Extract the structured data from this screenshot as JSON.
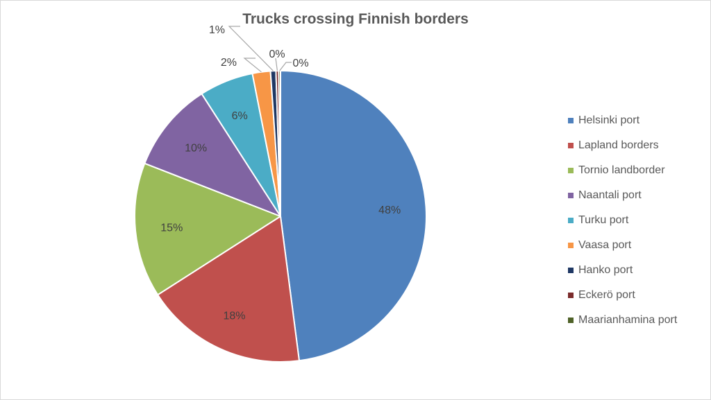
{
  "chart_data": {
    "type": "pie",
    "title": "Trucks crossing Finnish borders",
    "slices": [
      {
        "label": "Helsinki port",
        "value": 48,
        "display": "48%",
        "color": "#4F81BD"
      },
      {
        "label": "Lapland borders",
        "value": 18,
        "display": "18%",
        "color": "#C0504D"
      },
      {
        "label": "Tornio landborder",
        "value": 15,
        "display": "15%",
        "color": "#9BBB59"
      },
      {
        "label": "Naantali port",
        "value": 10,
        "display": "10%",
        "color": "#8064A2"
      },
      {
        "label": "Turku port",
        "value": 6,
        "display": "6%",
        "color": "#4BACC6"
      },
      {
        "label": "Vaasa port",
        "value": 2,
        "display": "2%",
        "color": "#F79646"
      },
      {
        "label": "Hanko port",
        "value": 0.6,
        "display": "1%",
        "color": "#1F3864"
      },
      {
        "label": "Eckerö port",
        "value": 0.3,
        "display": "0%",
        "color": "#7B2C2C"
      },
      {
        "label": "Maarianhamina port",
        "value": 0.2,
        "display": "0%",
        "color": "#4F6228"
      }
    ],
    "legend_position": "right"
  }
}
